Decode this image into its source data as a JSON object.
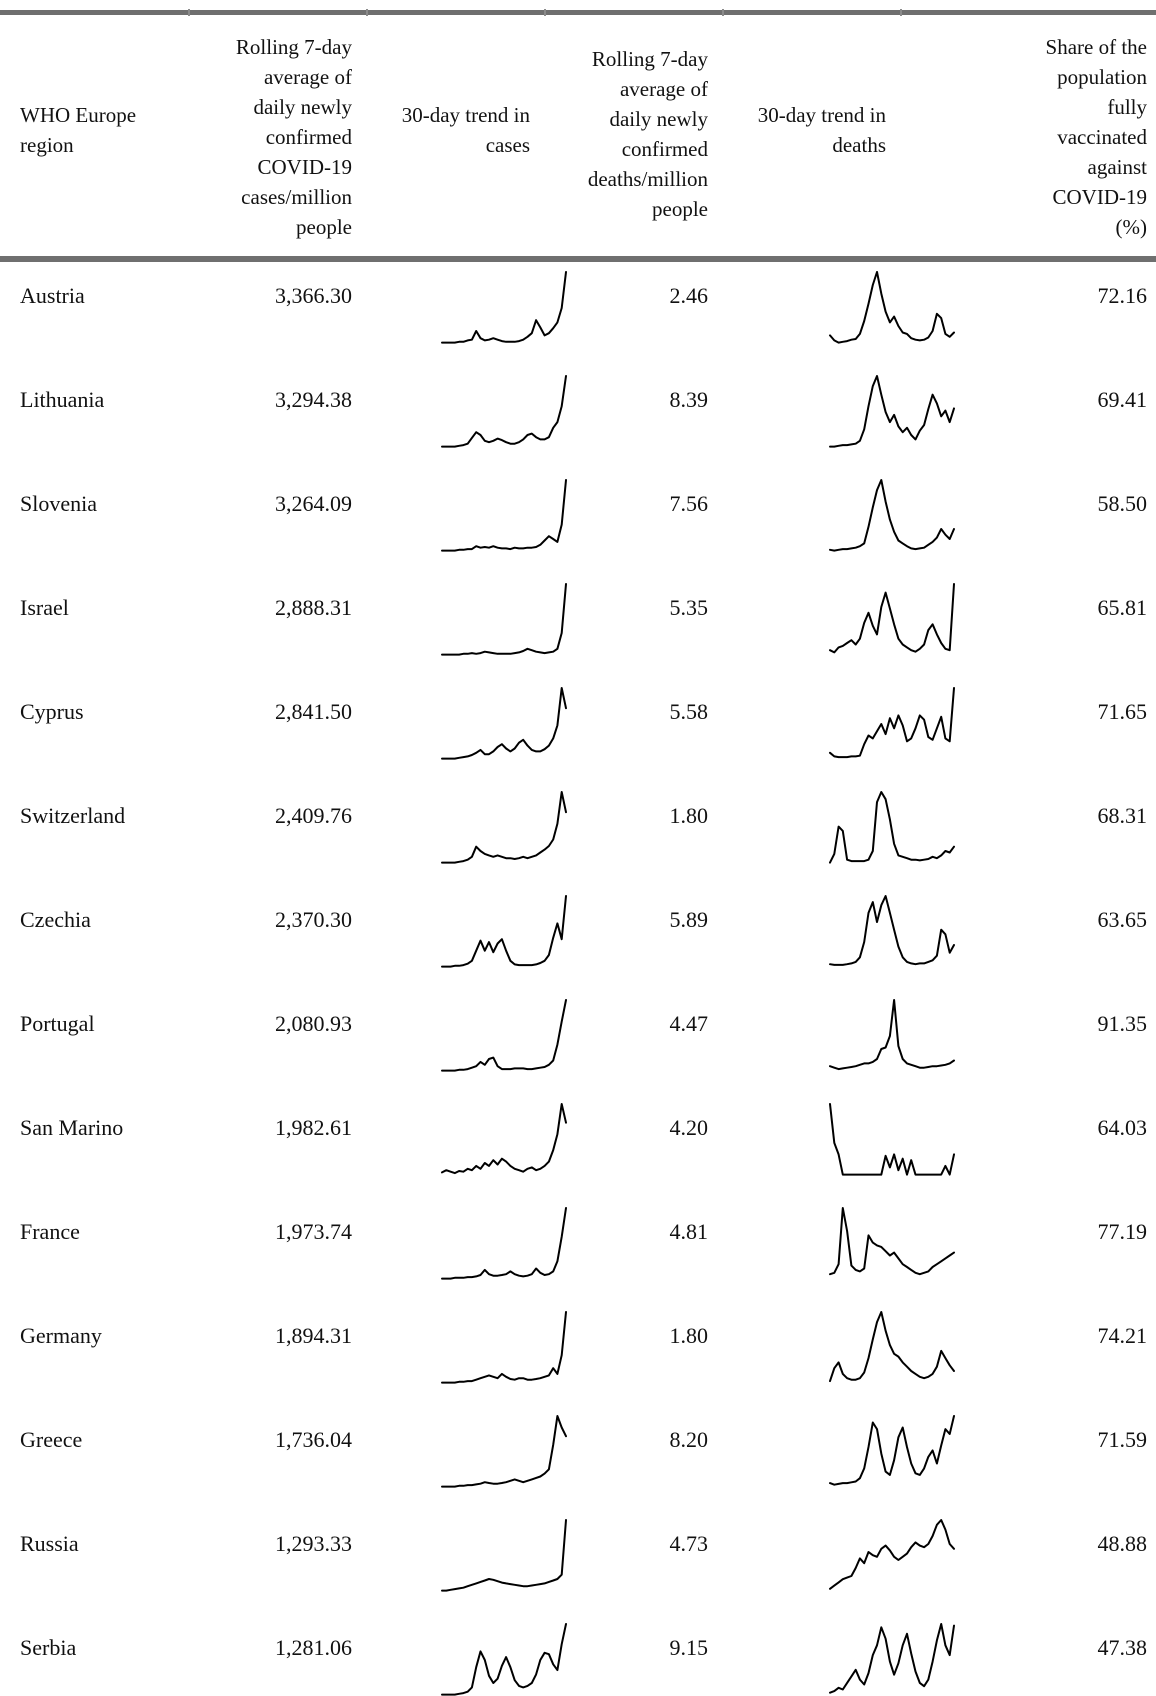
{
  "table": {
    "headers": {
      "region": [
        "WHO Europe",
        "region"
      ],
      "cases_avg": [
        "Rolling 7-day",
        "average of",
        "daily newly",
        "confirmed",
        "COVID-19",
        "cases/million",
        "people"
      ],
      "cases_trend": [
        "30-day trend in",
        "cases"
      ],
      "deaths_avg": [
        "Rolling 7-day",
        "average of",
        "daily newly",
        "confirmed",
        "deaths/million",
        "people"
      ],
      "deaths_trend": [
        "30-day trend in",
        "deaths"
      ],
      "vaccinated": [
        "Share of the",
        "population",
        "fully",
        "vaccinated",
        "against",
        "COVID-19",
        "(%)"
      ]
    },
    "rows": [
      {
        "region": "Austria",
        "cases_avg": "3,366.30",
        "deaths_avg": "2.46",
        "vaccinated": "72.16",
        "cases_trend": [
          0.02,
          0.02,
          0.02,
          0.02,
          0.03,
          0.03,
          0.05,
          0.06,
          0.18,
          0.08,
          0.05,
          0.06,
          0.08,
          0.06,
          0.04,
          0.03,
          0.03,
          0.03,
          0.04,
          0.06,
          0.1,
          0.15,
          0.33,
          0.23,
          0.12,
          0.15,
          0.22,
          0.3,
          0.5,
          1.0
        ],
        "deaths_trend": [
          0.12,
          0.05,
          0.02,
          0.03,
          0.04,
          0.06,
          0.07,
          0.14,
          0.32,
          0.56,
          0.82,
          1.0,
          0.7,
          0.45,
          0.3,
          0.38,
          0.25,
          0.16,
          0.14,
          0.08,
          0.06,
          0.05,
          0.06,
          0.09,
          0.18,
          0.42,
          0.36,
          0.14,
          0.1,
          0.16
        ]
      },
      {
        "region": "Lithuania",
        "cases_avg": "3,294.38",
        "deaths_avg": "8.39",
        "vaccinated": "69.41",
        "cases_trend": [
          0.02,
          0.02,
          0.02,
          0.02,
          0.03,
          0.04,
          0.06,
          0.14,
          0.22,
          0.18,
          0.1,
          0.08,
          0.1,
          0.13,
          0.11,
          0.08,
          0.06,
          0.06,
          0.08,
          0.12,
          0.18,
          0.2,
          0.15,
          0.12,
          0.12,
          0.15,
          0.28,
          0.36,
          0.58,
          1.0
        ],
        "deaths_trend": [
          0.02,
          0.02,
          0.03,
          0.04,
          0.04,
          0.05,
          0.06,
          0.1,
          0.26,
          0.58,
          0.86,
          1.0,
          0.74,
          0.5,
          0.36,
          0.46,
          0.3,
          0.22,
          0.28,
          0.18,
          0.12,
          0.24,
          0.32,
          0.54,
          0.74,
          0.62,
          0.44,
          0.52,
          0.36,
          0.55
        ]
      },
      {
        "region": "Slovenia",
        "cases_avg": "3,264.09",
        "deaths_avg": "7.56",
        "vaccinated": "58.50",
        "cases_trend": [
          0.02,
          0.02,
          0.02,
          0.02,
          0.03,
          0.03,
          0.04,
          0.04,
          0.08,
          0.06,
          0.07,
          0.06,
          0.08,
          0.06,
          0.05,
          0.05,
          0.04,
          0.06,
          0.05,
          0.05,
          0.06,
          0.06,
          0.07,
          0.1,
          0.16,
          0.22,
          0.18,
          0.14,
          0.38,
          1.0
        ],
        "deaths_trend": [
          0.03,
          0.02,
          0.03,
          0.04,
          0.04,
          0.05,
          0.06,
          0.08,
          0.12,
          0.35,
          0.62,
          0.86,
          1.0,
          0.7,
          0.45,
          0.28,
          0.16,
          0.12,
          0.08,
          0.05,
          0.04,
          0.05,
          0.06,
          0.1,
          0.14,
          0.2,
          0.32,
          0.24,
          0.18,
          0.32
        ]
      },
      {
        "region": "Israel",
        "cases_avg": "2,888.31",
        "deaths_avg": "5.35",
        "vaccinated": "65.81",
        "cases_trend": [
          0.02,
          0.02,
          0.02,
          0.02,
          0.02,
          0.03,
          0.03,
          0.04,
          0.03,
          0.04,
          0.06,
          0.05,
          0.04,
          0.03,
          0.03,
          0.03,
          0.03,
          0.04,
          0.05,
          0.07,
          0.1,
          0.08,
          0.06,
          0.05,
          0.04,
          0.05,
          0.06,
          0.1,
          0.32,
          1.0
        ],
        "deaths_trend": [
          0.08,
          0.05,
          0.12,
          0.14,
          0.18,
          0.22,
          0.16,
          0.24,
          0.46,
          0.6,
          0.42,
          0.3,
          0.68,
          0.88,
          0.66,
          0.44,
          0.24,
          0.16,
          0.12,
          0.08,
          0.06,
          0.1,
          0.16,
          0.36,
          0.44,
          0.3,
          0.18,
          0.1,
          0.08,
          1.0
        ]
      },
      {
        "region": "Cyprus",
        "cases_avg": "2,841.50",
        "deaths_avg": "5.58",
        "vaccinated": "71.65",
        "cases_trend": [
          0.02,
          0.02,
          0.02,
          0.02,
          0.03,
          0.04,
          0.05,
          0.07,
          0.1,
          0.14,
          0.08,
          0.08,
          0.12,
          0.18,
          0.22,
          0.16,
          0.12,
          0.16,
          0.24,
          0.28,
          0.2,
          0.14,
          0.12,
          0.12,
          0.15,
          0.2,
          0.3,
          0.48,
          1.0,
          0.72
        ],
        "deaths_trend": [
          0.1,
          0.05,
          0.04,
          0.04,
          0.04,
          0.05,
          0.05,
          0.06,
          0.22,
          0.34,
          0.3,
          0.4,
          0.5,
          0.36,
          0.58,
          0.44,
          0.62,
          0.48,
          0.26,
          0.3,
          0.44,
          0.62,
          0.56,
          0.32,
          0.28,
          0.44,
          0.6,
          0.3,
          0.26,
          1.0
        ]
      },
      {
        "region": "Switzerland",
        "cases_avg": "2,409.76",
        "deaths_avg": "1.80",
        "vaccinated": "68.31",
        "cases_trend": [
          0.02,
          0.02,
          0.02,
          0.02,
          0.03,
          0.04,
          0.06,
          0.1,
          0.24,
          0.18,
          0.14,
          0.12,
          0.1,
          0.12,
          0.1,
          0.08,
          0.08,
          0.07,
          0.08,
          0.1,
          0.08,
          0.1,
          0.12,
          0.16,
          0.2,
          0.25,
          0.34,
          0.56,
          1.0,
          0.72
        ],
        "deaths_trend": [
          0.02,
          0.14,
          0.52,
          0.46,
          0.06,
          0.04,
          0.04,
          0.04,
          0.04,
          0.06,
          0.18,
          0.86,
          1.0,
          0.9,
          0.62,
          0.28,
          0.12,
          0.1,
          0.08,
          0.06,
          0.06,
          0.05,
          0.06,
          0.07,
          0.1,
          0.08,
          0.12,
          0.18,
          0.16,
          0.24
        ]
      },
      {
        "region": "Czechia",
        "cases_avg": "2,370.30",
        "deaths_avg": "5.89",
        "vaccinated": "63.65",
        "cases_trend": [
          0.02,
          0.02,
          0.02,
          0.03,
          0.03,
          0.04,
          0.06,
          0.1,
          0.24,
          0.38,
          0.24,
          0.36,
          0.22,
          0.34,
          0.4,
          0.24,
          0.1,
          0.05,
          0.04,
          0.04,
          0.04,
          0.04,
          0.05,
          0.07,
          0.1,
          0.18,
          0.42,
          0.62,
          0.4,
          1.0
        ],
        "deaths_trend": [
          0.05,
          0.04,
          0.04,
          0.04,
          0.05,
          0.06,
          0.08,
          0.14,
          0.34,
          0.72,
          0.86,
          0.6,
          0.82,
          0.94,
          0.72,
          0.5,
          0.28,
          0.14,
          0.08,
          0.06,
          0.05,
          0.06,
          0.06,
          0.08,
          0.1,
          0.16,
          0.5,
          0.44,
          0.2,
          0.3
        ]
      },
      {
        "region": "Portugal",
        "cases_avg": "2,080.93",
        "deaths_avg": "4.47",
        "vaccinated": "91.35",
        "cases_trend": [
          0.02,
          0.02,
          0.02,
          0.02,
          0.03,
          0.03,
          0.04,
          0.06,
          0.08,
          0.14,
          0.1,
          0.18,
          0.2,
          0.08,
          0.04,
          0.04,
          0.04,
          0.05,
          0.05,
          0.05,
          0.04,
          0.04,
          0.05,
          0.06,
          0.07,
          0.1,
          0.16,
          0.38,
          0.7,
          1.0
        ],
        "deaths_trend": [
          0.08,
          0.06,
          0.04,
          0.05,
          0.06,
          0.07,
          0.08,
          0.1,
          0.12,
          0.12,
          0.14,
          0.18,
          0.32,
          0.34,
          0.5,
          1.0,
          0.36,
          0.18,
          0.12,
          0.1,
          0.08,
          0.06,
          0.06,
          0.07,
          0.08,
          0.08,
          0.09,
          0.1,
          0.12,
          0.16
        ]
      },
      {
        "region": "San Marino",
        "cases_avg": "1,982.61",
        "deaths_avg": "4.20",
        "vaccinated": "64.03",
        "cases_trend": [
          0.05,
          0.08,
          0.06,
          0.04,
          0.07,
          0.06,
          0.1,
          0.08,
          0.14,
          0.1,
          0.18,
          0.14,
          0.22,
          0.16,
          0.24,
          0.2,
          0.14,
          0.1,
          0.08,
          0.06,
          0.1,
          0.12,
          0.08,
          0.1,
          0.14,
          0.2,
          0.36,
          0.58,
          1.0,
          0.74
        ],
        "deaths_trend": [
          1.0,
          0.46,
          0.3,
          0.02,
          0.02,
          0.02,
          0.02,
          0.02,
          0.02,
          0.02,
          0.02,
          0.02,
          0.02,
          0.28,
          0.12,
          0.3,
          0.08,
          0.24,
          0.02,
          0.22,
          0.02,
          0.02,
          0.02,
          0.02,
          0.02,
          0.02,
          0.02,
          0.14,
          0.02,
          0.3
        ]
      },
      {
        "region": "France",
        "cases_avg": "1,973.74",
        "deaths_avg": "4.81",
        "vaccinated": "77.19",
        "cases_trend": [
          0.02,
          0.02,
          0.02,
          0.03,
          0.03,
          0.03,
          0.04,
          0.04,
          0.05,
          0.07,
          0.14,
          0.08,
          0.06,
          0.06,
          0.07,
          0.08,
          0.12,
          0.08,
          0.06,
          0.05,
          0.06,
          0.08,
          0.16,
          0.1,
          0.07,
          0.08,
          0.12,
          0.26,
          0.6,
          1.0
        ],
        "deaths_trend": [
          0.08,
          0.1,
          0.22,
          1.0,
          0.68,
          0.2,
          0.14,
          0.12,
          0.16,
          0.62,
          0.52,
          0.48,
          0.46,
          0.4,
          0.34,
          0.38,
          0.3,
          0.22,
          0.18,
          0.14,
          0.1,
          0.08,
          0.1,
          0.12,
          0.18,
          0.22,
          0.26,
          0.3,
          0.34,
          0.38
        ]
      },
      {
        "region": "Germany",
        "cases_avg": "1,894.31",
        "deaths_avg": "1.80",
        "vaccinated": "74.21",
        "cases_trend": [
          0.02,
          0.02,
          0.02,
          0.02,
          0.03,
          0.03,
          0.04,
          0.04,
          0.06,
          0.08,
          0.1,
          0.12,
          0.1,
          0.08,
          0.14,
          0.1,
          0.07,
          0.06,
          0.08,
          0.08,
          0.06,
          0.06,
          0.07,
          0.08,
          0.1,
          0.12,
          0.22,
          0.14,
          0.4,
          1.0
        ],
        "deaths_trend": [
          0.04,
          0.22,
          0.3,
          0.14,
          0.08,
          0.06,
          0.06,
          0.08,
          0.16,
          0.36,
          0.62,
          0.86,
          1.0,
          0.74,
          0.54,
          0.42,
          0.38,
          0.3,
          0.24,
          0.18,
          0.14,
          0.1,
          0.08,
          0.1,
          0.14,
          0.24,
          0.46,
          0.36,
          0.26,
          0.18
        ]
      },
      {
        "region": "Greece",
        "cases_avg": "1,736.04",
        "deaths_avg": "8.20",
        "vaccinated": "71.59",
        "cases_trend": [
          0.02,
          0.02,
          0.02,
          0.02,
          0.03,
          0.03,
          0.04,
          0.04,
          0.05,
          0.06,
          0.08,
          0.07,
          0.06,
          0.06,
          0.07,
          0.08,
          0.1,
          0.12,
          0.1,
          0.08,
          0.1,
          0.12,
          0.14,
          0.16,
          0.2,
          0.26,
          0.6,
          1.0,
          0.84,
          0.72
        ],
        "deaths_trend": [
          0.06,
          0.04,
          0.05,
          0.06,
          0.06,
          0.07,
          0.08,
          0.12,
          0.24,
          0.5,
          0.8,
          0.72,
          0.42,
          0.2,
          0.16,
          0.34,
          0.62,
          0.74,
          0.5,
          0.3,
          0.18,
          0.16,
          0.24,
          0.38,
          0.46,
          0.3,
          0.52,
          0.72,
          0.66,
          0.88
        ]
      },
      {
        "region": "Russia",
        "cases_avg": "1,293.33",
        "deaths_avg": "4.73",
        "vaccinated": "48.88",
        "cases_trend": [
          0.02,
          0.02,
          0.03,
          0.04,
          0.05,
          0.06,
          0.08,
          0.1,
          0.12,
          0.14,
          0.16,
          0.18,
          0.17,
          0.15,
          0.13,
          0.12,
          0.11,
          0.1,
          0.09,
          0.08,
          0.08,
          0.09,
          0.1,
          0.11,
          0.12,
          0.14,
          0.16,
          0.18,
          0.24,
          1.0
        ],
        "deaths_trend": [
          0.04,
          0.08,
          0.12,
          0.16,
          0.18,
          0.2,
          0.3,
          0.42,
          0.36,
          0.5,
          0.46,
          0.44,
          0.54,
          0.58,
          0.52,
          0.44,
          0.4,
          0.44,
          0.48,
          0.56,
          0.62,
          0.58,
          0.56,
          0.6,
          0.7,
          0.84,
          0.9,
          0.78,
          0.6,
          0.54
        ]
      },
      {
        "region": "Serbia",
        "cases_avg": "1,281.06",
        "deaths_avg": "9.15",
        "vaccinated": "47.38",
        "cases_trend": [
          0.02,
          0.02,
          0.02,
          0.02,
          0.03,
          0.04,
          0.06,
          0.12,
          0.4,
          0.62,
          0.5,
          0.28,
          0.18,
          0.24,
          0.42,
          0.54,
          0.4,
          0.22,
          0.14,
          0.12,
          0.14,
          0.18,
          0.3,
          0.5,
          0.6,
          0.58,
          0.44,
          0.36,
          0.72,
          1.0
        ],
        "deaths_trend": [
          0.04,
          0.06,
          0.1,
          0.08,
          0.16,
          0.24,
          0.32,
          0.2,
          0.14,
          0.28,
          0.5,
          0.62,
          0.84,
          0.7,
          0.42,
          0.26,
          0.4,
          0.62,
          0.76,
          0.52,
          0.3,
          0.16,
          0.12,
          0.2,
          0.42,
          0.68,
          0.88,
          0.62,
          0.5,
          0.86
        ]
      }
    ]
  }
}
